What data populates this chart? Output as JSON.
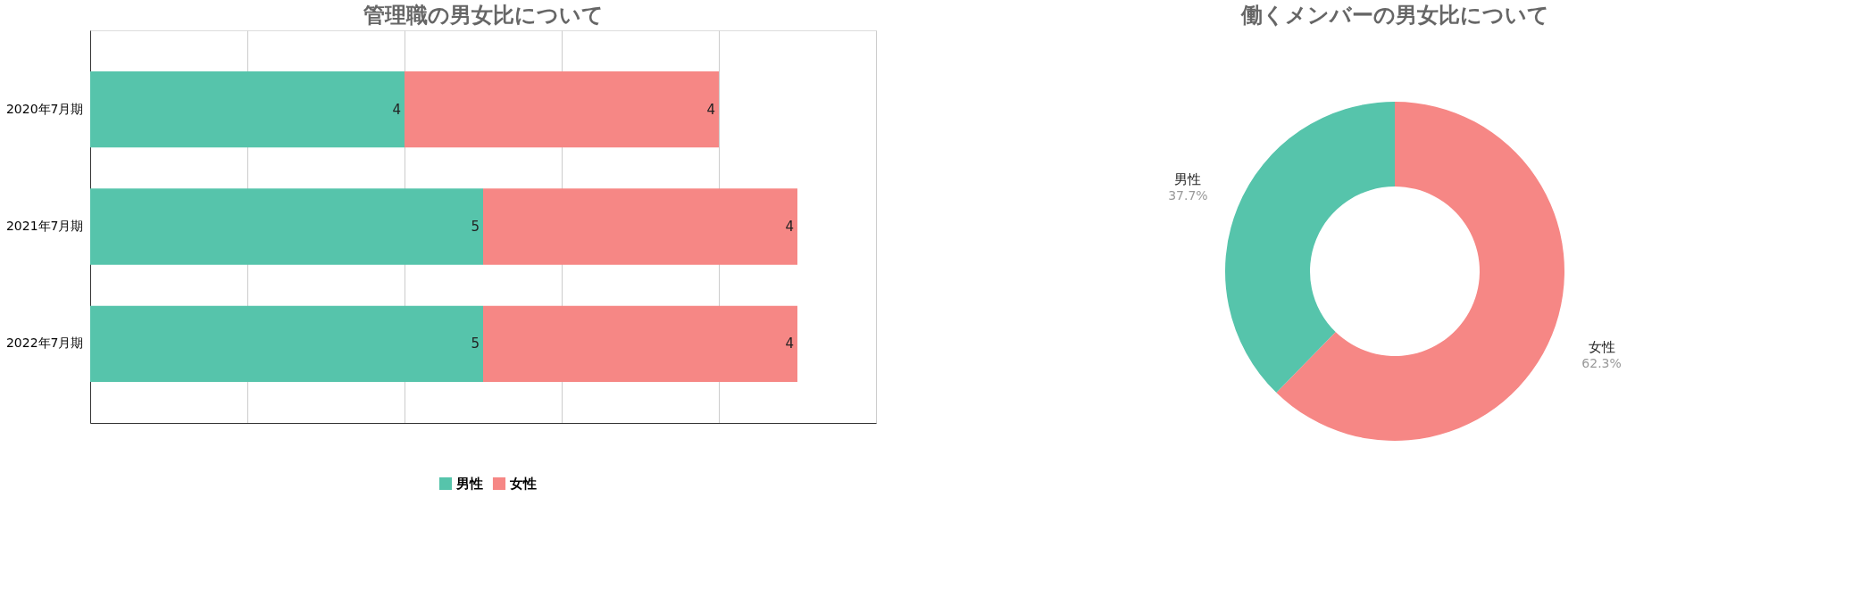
{
  "chart_data": [
    {
      "type": "bar",
      "title": "管理職の男女比について",
      "orientation": "horizontal",
      "stacked": true,
      "categories": [
        "2020年7月期",
        "2021年7月期",
        "2022年7月期"
      ],
      "series": [
        {
          "name": "男性",
          "color": "#56c4ab",
          "values": [
            4,
            5,
            5
          ]
        },
        {
          "name": "女性",
          "color": "#f68785",
          "values": [
            4,
            4,
            4
          ]
        }
      ],
      "xlim": [
        0,
        10
      ],
      "xticks": [
        {
          "value": 0,
          "label": null
        },
        {
          "value": 2,
          "label": null
        },
        {
          "value": 4,
          "label": null
        },
        {
          "value": 6,
          "label": null
        },
        {
          "value": 8,
          "label": null
        },
        {
          "value": 10,
          "label": null
        }
      ],
      "tick_labels": "y",
      "grid": "x",
      "data_labels": true,
      "legend": "bottom"
    },
    {
      "type": "donut",
      "title": "働くメンバーの男女比について",
      "categories": [
        "女性",
        "男性"
      ],
      "values": [
        62.3,
        37.7
      ],
      "colors": [
        "#f68785",
        "#56c4ab"
      ],
      "value_labels": [
        "62.3%",
        "37.7%"
      ],
      "legend": false
    }
  ]
}
